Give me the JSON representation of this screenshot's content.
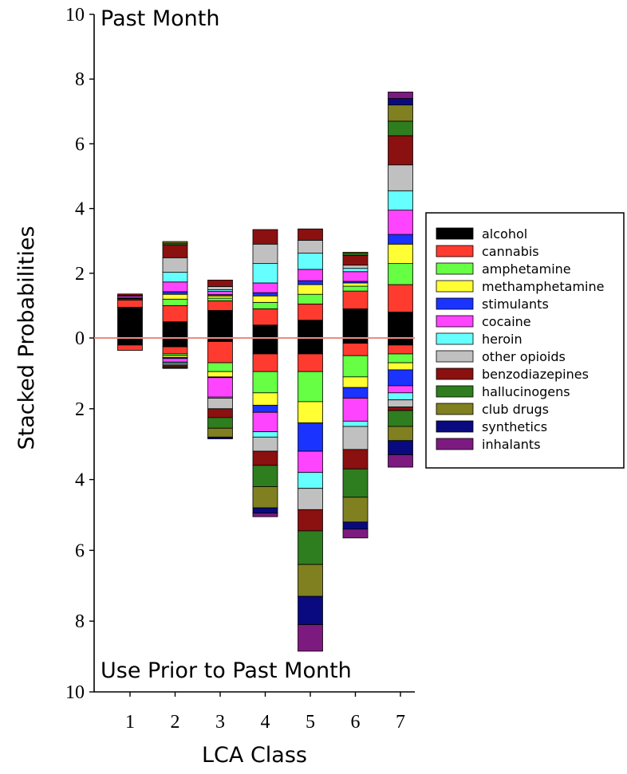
{
  "chart_data": {
    "type": "bar",
    "subtype": "mirrored-stacked-bar",
    "top_label": "Past Month",
    "bottom_label": "Use Prior to Past Month",
    "xlabel": "LCA Class",
    "ylabel": "Stacked Probabilities",
    "categories": [
      "1",
      "2",
      "3",
      "4",
      "5",
      "6",
      "7"
    ],
    "y_ticks_top": [
      "10",
      "8",
      "6",
      "4",
      "2",
      "0"
    ],
    "y_ticks_bottom": [
      "2",
      "4",
      "6",
      "8",
      "10"
    ],
    "ylim_top": [
      0,
      10
    ],
    "ylim_bottom": [
      0,
      10
    ],
    "reference_line_color": "#ef8a80",
    "legend_position": "right",
    "series": [
      {
        "name": "alcohol",
        "color": "#000000",
        "top": [
          0.95,
          0.5,
          0.85,
          0.4,
          0.55,
          0.9,
          0.8
        ],
        "bottom": [
          0.2,
          0.25,
          0.1,
          0.45,
          0.45,
          0.15,
          0.2
        ]
      },
      {
        "name": "cannabis",
        "color": "#ff3b2f",
        "top": [
          0.22,
          0.5,
          0.3,
          0.5,
          0.5,
          0.55,
          0.85
        ],
        "bottom": [
          0.15,
          0.2,
          0.6,
          0.5,
          0.5,
          0.35,
          0.25
        ]
      },
      {
        "name": "amphetamine",
        "color": "#66ff44",
        "top": [
          0.03,
          0.2,
          0.08,
          0.2,
          0.3,
          0.15,
          0.65
        ],
        "bottom": [
          0.0,
          0.05,
          0.25,
          0.6,
          0.85,
          0.6,
          0.25
        ]
      },
      {
        "name": "methamphetamine",
        "color": "#ffff33",
        "top": [
          0.02,
          0.15,
          0.07,
          0.2,
          0.3,
          0.1,
          0.6
        ],
        "bottom": [
          0.0,
          0.05,
          0.15,
          0.35,
          0.6,
          0.3,
          0.2
        ]
      },
      {
        "name": "stimulants",
        "color": "#1a33ff",
        "top": [
          0.02,
          0.08,
          0.04,
          0.1,
          0.12,
          0.05,
          0.3
        ],
        "bottom": [
          0.0,
          0.03,
          0.02,
          0.2,
          0.8,
          0.3,
          0.45
        ]
      },
      {
        "name": "cocaine",
        "color": "#ff44ff",
        "top": [
          0.05,
          0.3,
          0.1,
          0.3,
          0.35,
          0.3,
          0.75
        ],
        "bottom": [
          0.0,
          0.1,
          0.55,
          0.55,
          0.6,
          0.65,
          0.2
        ]
      },
      {
        "name": "heroin",
        "color": "#66ffff",
        "top": [
          0.0,
          0.3,
          0.05,
          0.6,
          0.5,
          0.1,
          0.6
        ],
        "bottom": [
          0.0,
          0.03,
          0.03,
          0.15,
          0.45,
          0.15,
          0.2
        ]
      },
      {
        "name": "other opioids",
        "color": "#c0c0c0",
        "top": [
          0.02,
          0.45,
          0.1,
          0.6,
          0.4,
          0.1,
          0.8
        ],
        "bottom": [
          0.0,
          0.05,
          0.3,
          0.4,
          0.6,
          0.65,
          0.2
        ]
      },
      {
        "name": "benzodiazepines",
        "color": "#8b1010",
        "top": [
          0.05,
          0.4,
          0.2,
          0.45,
          0.35,
          0.3,
          0.9
        ],
        "bottom": [
          0.0,
          0.05,
          0.25,
          0.4,
          0.6,
          0.55,
          0.1
        ]
      },
      {
        "name": "hallucinogens",
        "color": "#2e7d1f",
        "top": [
          0.0,
          0.05,
          0.0,
          0.0,
          0.0,
          0.06,
          0.45
        ],
        "bottom": [
          0.0,
          0.03,
          0.3,
          0.6,
          0.95,
          0.8,
          0.45
        ]
      },
      {
        "name": "club drugs",
        "color": "#808020",
        "top": [
          0.0,
          0.05,
          0.0,
          0.0,
          0.0,
          0.04,
          0.5
        ],
        "bottom": [
          0.0,
          0.02,
          0.25,
          0.6,
          0.9,
          0.7,
          0.4
        ]
      },
      {
        "name": "synthetics",
        "color": "#0a0a80",
        "top": [
          0.0,
          0.0,
          0.0,
          0.0,
          0.0,
          0.0,
          0.2
        ],
        "bottom": [
          0.0,
          0.0,
          0.05,
          0.15,
          0.8,
          0.2,
          0.4
        ]
      },
      {
        "name": "inhalants",
        "color": "#7d1a80",
        "top": [
          0.0,
          0.0,
          0.0,
          0.0,
          0.0,
          0.0,
          0.2
        ],
        "bottom": [
          0.0,
          0.0,
          0.0,
          0.1,
          0.75,
          0.25,
          0.35
        ]
      }
    ]
  }
}
